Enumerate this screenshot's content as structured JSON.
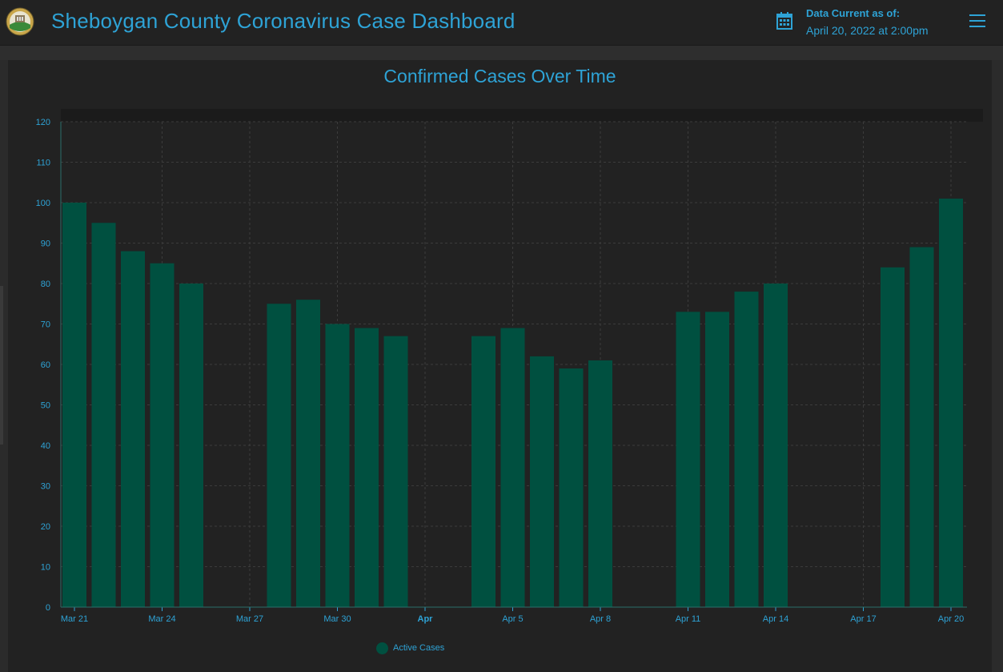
{
  "header": {
    "title": "Sheboygan County Coronavirus Case Dashboard",
    "date_label": "Data Current as of:",
    "date_value": "April 20, 2022 at 2:00pm",
    "logo_icon": "county-seal-logo",
    "date_icon": "calendar-icon",
    "menu_icon": "hamburger-menu-icon"
  },
  "colors": {
    "accent": "#2ea3d6",
    "bar": "#005040",
    "background": "#222222"
  },
  "chart_data": {
    "type": "bar",
    "title": "Confirmed Cases Over Time",
    "xlabel": "",
    "ylabel": "",
    "ylim": [
      0,
      120
    ],
    "yticks": [
      0,
      10,
      20,
      30,
      40,
      50,
      60,
      70,
      80,
      90,
      100,
      110,
      120
    ],
    "grid": true,
    "legend_position": "bottom",
    "x_start": "2022-03-21",
    "x_end": "2022-04-20",
    "x_tick_labels": [
      {
        "date": "2022-03-21",
        "label": "Mar 21"
      },
      {
        "date": "2022-03-24",
        "label": "Mar 24"
      },
      {
        "date": "2022-03-27",
        "label": "Mar 27"
      },
      {
        "date": "2022-03-30",
        "label": "Mar 30"
      },
      {
        "date": "2022-04-02",
        "label": "Apr",
        "bold": true
      },
      {
        "date": "2022-04-05",
        "label": "Apr 5"
      },
      {
        "date": "2022-04-08",
        "label": "Apr 8"
      },
      {
        "date": "2022-04-11",
        "label": "Apr 11"
      },
      {
        "date": "2022-04-14",
        "label": "Apr 14"
      },
      {
        "date": "2022-04-17",
        "label": "Apr 17"
      },
      {
        "date": "2022-04-20",
        "label": "Apr 20"
      }
    ],
    "series": [
      {
        "name": "Active Cases",
        "color": "#005040",
        "points": [
          {
            "x": "2022-03-21",
            "y": 100
          },
          {
            "x": "2022-03-22",
            "y": 95
          },
          {
            "x": "2022-03-23",
            "y": 88
          },
          {
            "x": "2022-03-24",
            "y": 85
          },
          {
            "x": "2022-03-25",
            "y": 80
          },
          {
            "x": "2022-03-28",
            "y": 75
          },
          {
            "x": "2022-03-29",
            "y": 76
          },
          {
            "x": "2022-03-30",
            "y": 70
          },
          {
            "x": "2022-03-31",
            "y": 69
          },
          {
            "x": "2022-04-01",
            "y": 67
          },
          {
            "x": "2022-04-04",
            "y": 67
          },
          {
            "x": "2022-04-05",
            "y": 69
          },
          {
            "x": "2022-04-06",
            "y": 62
          },
          {
            "x": "2022-04-07",
            "y": 59
          },
          {
            "x": "2022-04-08",
            "y": 61
          },
          {
            "x": "2022-04-11",
            "y": 73
          },
          {
            "x": "2022-04-12",
            "y": 73
          },
          {
            "x": "2022-04-13",
            "y": 78
          },
          {
            "x": "2022-04-14",
            "y": 80
          },
          {
            "x": "2022-04-18",
            "y": 84
          },
          {
            "x": "2022-04-19",
            "y": 89
          },
          {
            "x": "2022-04-20",
            "y": 101
          }
        ]
      }
    ]
  }
}
